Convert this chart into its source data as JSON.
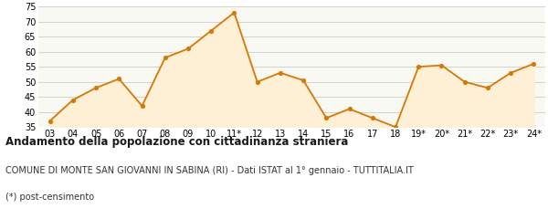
{
  "x_labels": [
    "03",
    "04",
    "05",
    "06",
    "07",
    "08",
    "09",
    "10",
    "11*",
    "12",
    "13",
    "14",
    "15",
    "16",
    "17",
    "18",
    "19*",
    "20*",
    "21*",
    "22*",
    "23*",
    "24*"
  ],
  "y_values": [
    37,
    44,
    48,
    51,
    42,
    58,
    61,
    67,
    73,
    50,
    53,
    50.5,
    38,
    41,
    38,
    35,
    55,
    55.5,
    50,
    48,
    53,
    56
  ],
  "line_color": "#d97700",
  "fill_color": "#fdf0d5",
  "marker_color": "#d97700",
  "background_color": "#f9f9f4",
  "grid_color": "#cccccc",
  "ylim": [
    35,
    75
  ],
  "yticks": [
    35,
    40,
    45,
    50,
    55,
    60,
    65,
    70,
    75
  ],
  "title": "Andamento della popolazione con cittadinanza straniera",
  "subtitle": "COMUNE DI MONTE SAN GIOVANNI IN SABINA (RI) - Dati ISTAT al 1° gennaio - TUTTITALIA.IT",
  "footnote": "(*) post-censimento",
  "title_fontsize": 8.5,
  "subtitle_fontsize": 7.0,
  "footnote_fontsize": 7.0,
  "tick_fontsize": 7.0
}
